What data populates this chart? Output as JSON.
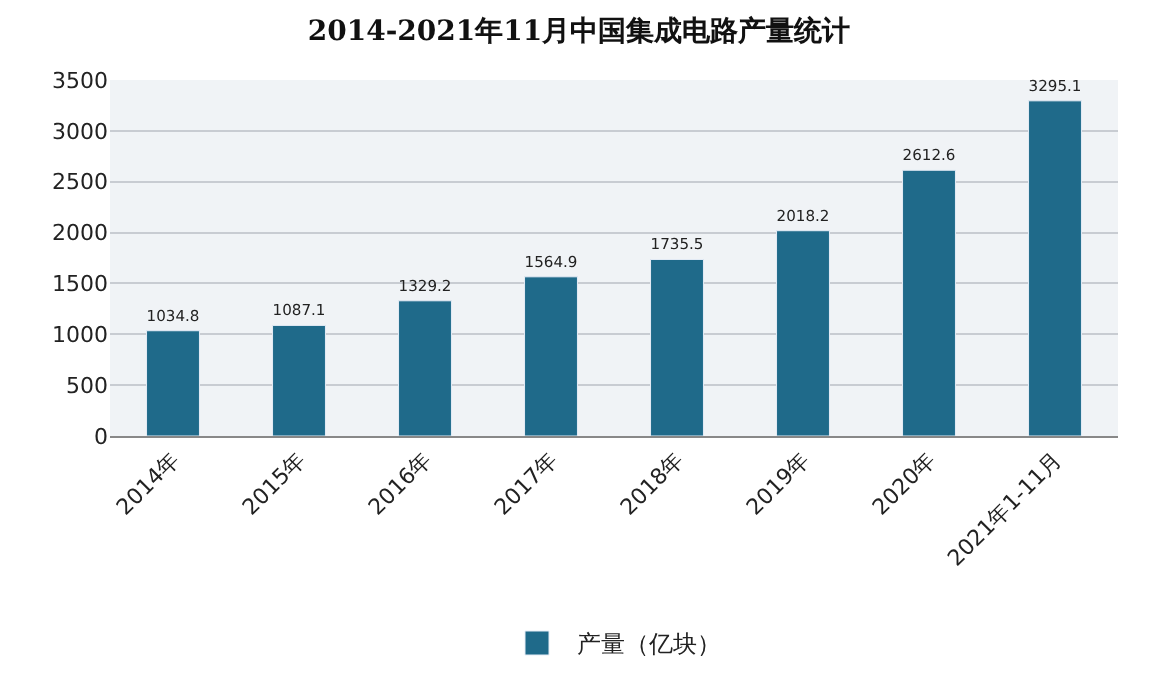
{
  "chart_data": {
    "type": "bar",
    "title": "2014-2021年11月中国集成电路产量统计",
    "categories": [
      "2014年",
      "2015年",
      "2016年",
      "2017年",
      "2018年",
      "2019年",
      "2020年",
      "2021年1-11月"
    ],
    "series": [
      {
        "name": "产量（亿块）",
        "color": "#1f6a8a",
        "values": [
          1034.8,
          1087.1,
          1329.2,
          1564.9,
          1735.5,
          2018.2,
          2612.6,
          3295.1
        ]
      }
    ],
    "ylim": [
      0,
      3500
    ],
    "yticks": [
      0,
      500,
      1000,
      1500,
      2000,
      2500,
      3000,
      3500
    ],
    "grid": "y",
    "legend": "bottom",
    "data_labels": true
  }
}
